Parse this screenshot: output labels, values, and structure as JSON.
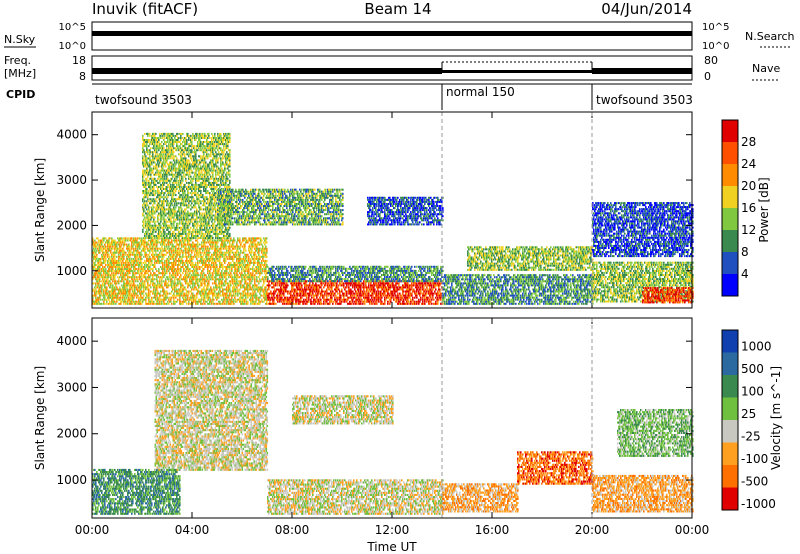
{
  "header": {
    "station": "Inuvik (fitACF)",
    "beam": "Beam 14",
    "date": "04/Jun/2014"
  },
  "noise_panel": {
    "left_label": "N.Sky",
    "right_label": "N.Search",
    "left_ticks": [
      "10^5",
      "10^0"
    ],
    "right_ticks": [
      "10^5",
      "10^0"
    ]
  },
  "freq_panel": {
    "left_label_line1": "Freq.",
    "left_label_line2": "[MHz]",
    "left_ticks": [
      "18",
      "8"
    ],
    "right_label": "Nave",
    "right_ticks": [
      "80",
      "0"
    ]
  },
  "cpid_panel": {
    "label": "CPID",
    "segments": [
      {
        "name": "twofsound 3503",
        "start_hour": 0,
        "end_hour": 14
      },
      {
        "name": "normal 150",
        "start_hour": 14,
        "end_hour": 20
      },
      {
        "name": "twofsound 3503",
        "start_hour": 20,
        "end_hour": 24
      }
    ]
  },
  "colors": {
    "power_scale": [
      "#0000ff",
      "#2050c0",
      "#3a8a50",
      "#80c840",
      "#f0d020",
      "#ff8c00",
      "#ff5000",
      "#e00000"
    ],
    "velocity_scale": [
      "#1040b0",
      "#2a6aa0",
      "#3a8a50",
      "#70c040",
      "#c8c8c0",
      "#ffa020",
      "#ff7000",
      "#e00000"
    ]
  },
  "chart_data": [
    {
      "type": "heatmap",
      "title": "Power",
      "ylabel": "Slant Range [km]",
      "xlabel": "",
      "ylim": [
        180,
        4500
      ],
      "xlim_hours": [
        0,
        24
      ],
      "y_ticks": [
        1000,
        2000,
        3000,
        4000
      ],
      "colorbar": {
        "label": "Power [dB]",
        "ticks": [
          4,
          8,
          12,
          16,
          20,
          24,
          28
        ],
        "range": [
          0,
          32
        ]
      },
      "regions": [
        {
          "t0": 0.0,
          "t1": 7.0,
          "r0": 250,
          "r1": 1700,
          "mean": 18
        },
        {
          "t0": 2.0,
          "t1": 5.5,
          "r0": 1700,
          "r1": 4000,
          "mean": 14
        },
        {
          "t0": 5.0,
          "t1": 10.0,
          "r0": 2000,
          "r1": 2800,
          "mean": 12
        },
        {
          "t0": 7.0,
          "t1": 14.0,
          "r0": 250,
          "r1": 750,
          "mean": 28
        },
        {
          "t0": 7.0,
          "t1": 14.0,
          "r0": 750,
          "r1": 1100,
          "mean": 10
        },
        {
          "t0": 11.0,
          "t1": 14.0,
          "r0": 2000,
          "r1": 2600,
          "mean": 6
        },
        {
          "t0": 14.0,
          "t1": 20.0,
          "r0": 250,
          "r1": 900,
          "mean": 10
        },
        {
          "t0": 15.0,
          "t1": 20.0,
          "r0": 1000,
          "r1": 1500,
          "mean": 14
        },
        {
          "t0": 20.0,
          "t1": 24.0,
          "r0": 300,
          "r1": 1200,
          "mean": 14
        },
        {
          "t0": 20.0,
          "t1": 24.0,
          "r0": 1300,
          "r1": 2500,
          "mean": 5
        },
        {
          "t0": 22.0,
          "t1": 24.0,
          "r0": 280,
          "r1": 600,
          "mean": 28
        }
      ]
    },
    {
      "type": "heatmap",
      "title": "Velocity",
      "ylabel": "Slant Range [km]",
      "xlabel": "Time UT",
      "ylim": [
        180,
        4500
      ],
      "xlim_hours": [
        0,
        24
      ],
      "y_ticks": [
        1000,
        2000,
        3000,
        4000
      ],
      "x_ticks": [
        "00:00",
        "04:00",
        "08:00",
        "12:00",
        "16:00",
        "20:00",
        "00:00"
      ],
      "colorbar": {
        "label": "Velocity [m s^-1]",
        "ticks": [
          "1000",
          "500",
          "100",
          "25",
          "-25",
          "-100",
          "-500",
          "-1000"
        ]
      },
      "regions": [
        {
          "t0": 0.0,
          "t1": 3.5,
          "r0": 250,
          "r1": 1200,
          "class": 2
        },
        {
          "t0": 2.5,
          "t1": 7.0,
          "r0": 1200,
          "r1": 3800,
          "class": 4
        },
        {
          "t0": 7.0,
          "t1": 14.0,
          "r0": 250,
          "r1": 1000,
          "class": 4
        },
        {
          "t0": 8.0,
          "t1": 12.0,
          "r0": 2200,
          "r1": 2800,
          "class": 4
        },
        {
          "t0": 14.0,
          "t1": 17.0,
          "r0": 300,
          "r1": 900,
          "class": 5
        },
        {
          "t0": 17.0,
          "t1": 20.0,
          "r0": 900,
          "r1": 1600,
          "class": 6
        },
        {
          "t0": 20.0,
          "t1": 24.0,
          "r0": 300,
          "r1": 1100,
          "class": 5
        },
        {
          "t0": 21.0,
          "t1": 24.0,
          "r0": 1500,
          "r1": 2500,
          "class": 3
        }
      ]
    }
  ]
}
